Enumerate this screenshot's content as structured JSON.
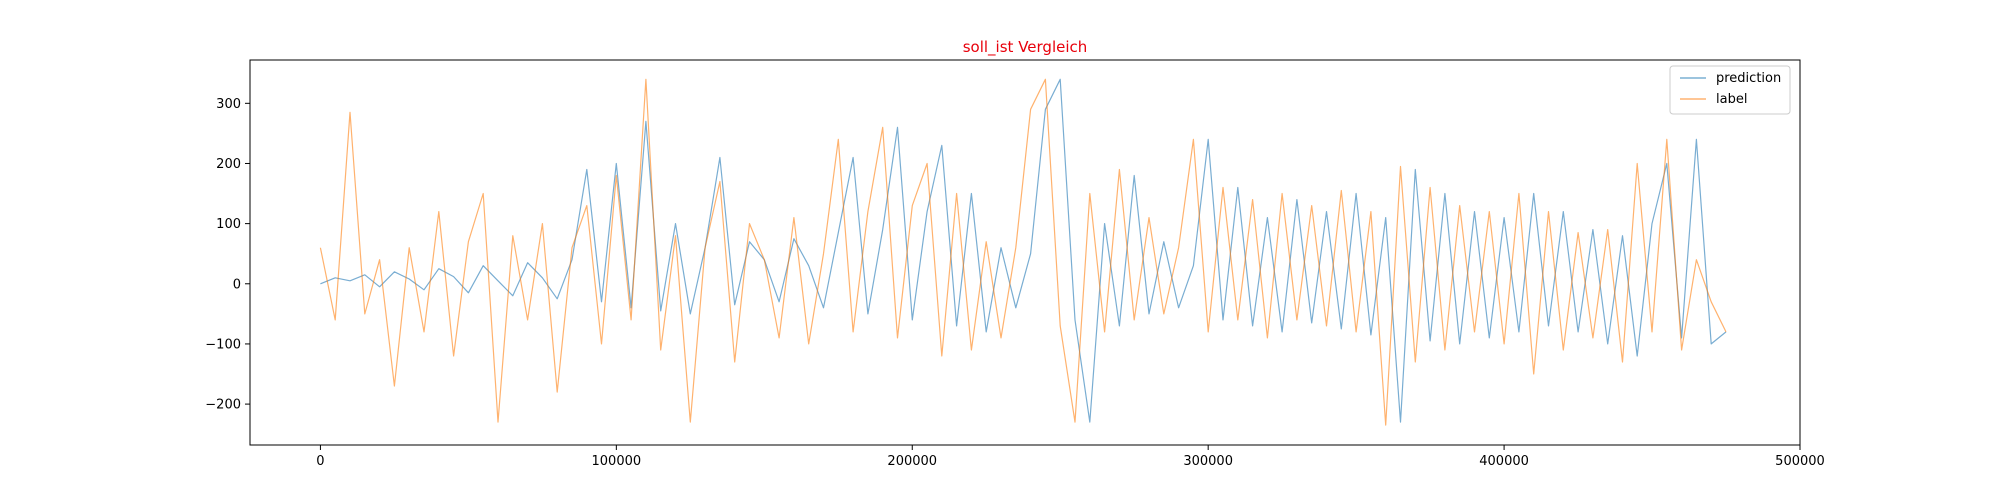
{
  "chart_data": {
    "type": "line",
    "title": "soll_ist Vergleich",
    "title_color": "#e8000b",
    "xlabel": "",
    "ylabel": "",
    "xlim": [
      -23800,
      500000
    ],
    "ylim": [
      -268,
      372
    ],
    "xticks": [
      0,
      100000,
      200000,
      300000,
      400000,
      500000
    ],
    "xtick_labels": [
      "0",
      "100000",
      "200000",
      "300000",
      "400000",
      "500000"
    ],
    "yticks": [
      -200,
      -100,
      0,
      100,
      200,
      300
    ],
    "ytick_labels": [
      "−200",
      "−100",
      "0",
      "100",
      "200",
      "300"
    ],
    "grid": false,
    "legend_position": "top-right",
    "series": [
      {
        "name": "prediction",
        "color": "#1f77b4",
        "x": [
          0,
          5000,
          10000,
          15000,
          20000,
          25000,
          30000,
          35000,
          40000,
          45000,
          50000,
          55000,
          60000,
          65000,
          70000,
          75000,
          80000,
          85000,
          90000,
          95000,
          100000,
          105000,
          110000,
          115000,
          120000,
          125000,
          130000,
          135000,
          140000,
          145000,
          150000,
          155000,
          160000,
          165000,
          170000,
          175000,
          180000,
          185000,
          190000,
          195000,
          200000,
          205000,
          210000,
          215000,
          220000,
          225000,
          230000,
          235000,
          240000,
          245000,
          250000,
          255000,
          260000,
          265000,
          270000,
          275000,
          280000,
          285000,
          290000,
          295000,
          300000,
          305000,
          310000,
          315000,
          320000,
          325000,
          330000,
          335000,
          340000,
          345000,
          350000,
          355000,
          360000,
          365000,
          370000,
          375000,
          380000,
          385000,
          390000,
          395000,
          400000,
          405000,
          410000,
          415000,
          420000,
          425000,
          430000,
          435000,
          440000,
          445000,
          450000,
          455000,
          460000,
          465000,
          470000,
          475000
        ],
        "y": [
          0,
          10,
          5,
          15,
          -5,
          20,
          8,
          -10,
          25,
          12,
          -15,
          30,
          5,
          -20,
          35,
          10,
          -25,
          40,
          190,
          -30,
          200,
          -40,
          270,
          -45,
          100,
          -50,
          60,
          210,
          -35,
          70,
          40,
          -30,
          75,
          30,
          -40,
          85,
          210,
          -50,
          90,
          260,
          -60,
          120,
          230,
          -70,
          150,
          -80,
          60,
          -40,
          50,
          290,
          340,
          -60,
          -230,
          100,
          -70,
          180,
          -50,
          70,
          -40,
          30,
          240,
          -60,
          160,
          -70,
          110,
          -80,
          140,
          -65,
          120,
          -75,
          150,
          -85,
          110,
          -230,
          190,
          -95,
          150,
          -100,
          120,
          -90,
          110,
          -80,
          150,
          -70,
          120,
          -80,
          90,
          -100,
          80,
          -120,
          100,
          200,
          -90,
          240,
          -100,
          -80
        ]
      },
      {
        "name": "label",
        "color": "#ff7f0e",
        "x": [
          0,
          5000,
          10000,
          15000,
          20000,
          25000,
          30000,
          35000,
          40000,
          45000,
          50000,
          55000,
          60000,
          65000,
          70000,
          75000,
          80000,
          85000,
          90000,
          95000,
          100000,
          105000,
          110000,
          115000,
          120000,
          125000,
          130000,
          135000,
          140000,
          145000,
          150000,
          155000,
          160000,
          165000,
          170000,
          175000,
          180000,
          185000,
          190000,
          195000,
          200000,
          205000,
          210000,
          215000,
          220000,
          225000,
          230000,
          235000,
          240000,
          245000,
          250000,
          255000,
          260000,
          265000,
          270000,
          275000,
          280000,
          285000,
          290000,
          295000,
          300000,
          305000,
          310000,
          315000,
          320000,
          325000,
          330000,
          335000,
          340000,
          345000,
          350000,
          355000,
          360000,
          365000,
          370000,
          375000,
          380000,
          385000,
          390000,
          395000,
          400000,
          405000,
          410000,
          415000,
          420000,
          425000,
          430000,
          435000,
          440000,
          445000,
          450000,
          455000,
          460000,
          465000,
          470000,
          475000
        ],
        "y": [
          60,
          -60,
          285,
          -50,
          40,
          -170,
          60,
          -80,
          120,
          -120,
          70,
          150,
          -230,
          80,
          -60,
          100,
          -180,
          60,
          130,
          -100,
          180,
          -60,
          340,
          -110,
          80,
          -230,
          60,
          170,
          -130,
          100,
          40,
          -90,
          110,
          -100,
          50,
          240,
          -80,
          120,
          260,
          -90,
          130,
          200,
          -120,
          150,
          -110,
          70,
          -90,
          60,
          290,
          340,
          -70,
          -230,
          150,
          -80,
          190,
          -60,
          110,
          -50,
          60,
          240,
          -80,
          160,
          -60,
          140,
          -90,
          150,
          -60,
          130,
          -70,
          155,
          -80,
          120,
          -235,
          195,
          -130,
          160,
          -110,
          130,
          -80,
          120,
          -100,
          150,
          -150,
          120,
          -110,
          85,
          -90,
          90,
          -130,
          200,
          -80,
          240,
          -110,
          40,
          -30,
          -80
        ]
      }
    ]
  }
}
